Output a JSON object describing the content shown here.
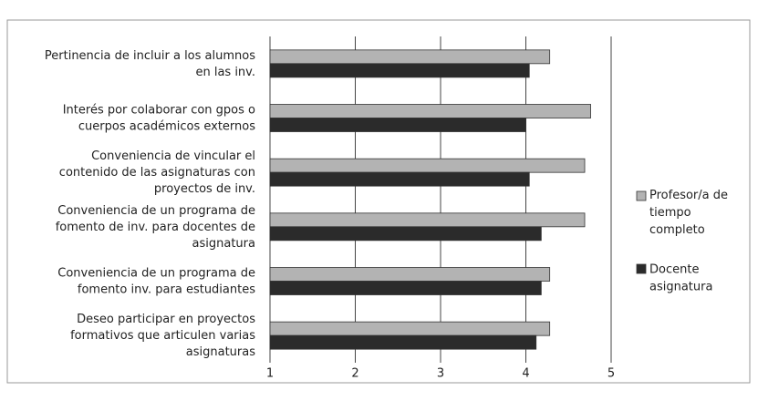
{
  "chart_data": {
    "type": "bar",
    "orientation": "horizontal",
    "categories": [
      "Pertinencia de incluir a los alumnos\nen las inv.",
      "Interés por colaborar con gpos o\ncuerpos académicos externos",
      "Conveniencia de vincular el\ncontenido de las asignaturas con\nproyectos de inv.",
      "Conveniencia de un programa de\nfomento de inv. para docentes de\nasignatura",
      "Conveniencia de un programa de\nfomento inv. para estudiantes",
      "Deseo participar en proyectos\nformativos que articulen varias\nasignaturas"
    ],
    "series": [
      {
        "name": "Profesor/a de\ntiempo\ncompleto",
        "color": "#b3b3b3",
        "values": [
          4.28,
          4.76,
          4.69,
          4.69,
          4.28,
          4.28
        ]
      },
      {
        "name": "Docente\nasignatura",
        "color": "#2b2b2b",
        "values": [
          4.04,
          4.0,
          4.04,
          4.18,
          4.18,
          4.12
        ]
      }
    ],
    "xlim": [
      1,
      5
    ],
    "xticks": [
      1,
      2,
      3,
      4,
      5
    ],
    "grid": true,
    "legend": "right"
  }
}
